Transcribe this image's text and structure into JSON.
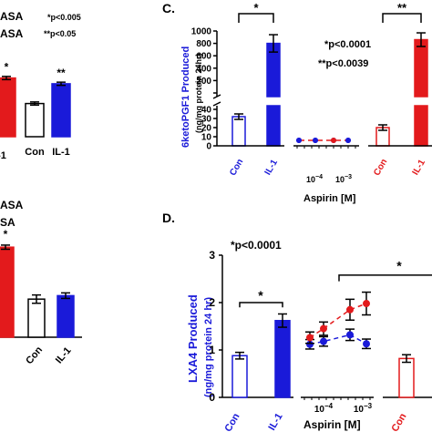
{
  "colors": {
    "red": "#e31a1c",
    "blue": "#1a1ad9",
    "black": "#000000",
    "white": "#ffffff"
  },
  "panel_left_top": {
    "legend": [
      "ASA",
      "ASA"
    ],
    "stats": [
      "*p<0.005",
      "**p<0.05"
    ]
  },
  "panel_left_bottom": {
    "legend": [
      "ASA",
      "SA"
    ]
  },
  "chart_data": [
    {
      "panel": "",
      "type": "bar",
      "categories": [
        "",
        "Con",
        "IL-1"
      ],
      "values": [
        0.92,
        0.52,
        0.83
      ],
      "errors": [
        0.025,
        0.025,
        0.025
      ],
      "ylim": [
        0,
        1.3
      ],
      "colors": [
        "#e31a1c",
        "#ffffff",
        "#1a1ad9"
      ],
      "annotations": [
        "*",
        "",
        "**"
      ],
      "xlabel": "",
      "ylabel": ""
    },
    {
      "panel": "C.",
      "type": "bar",
      "ylabel": "6ketoPGF1 Produced",
      "ylabel2": "(ng/mg protein 24hr)",
      "xlabel": "Aspirin [M]",
      "categories": [
        "Con",
        "IL-1",
        "",
        "",
        "",
        "",
        "Con",
        "IL-1"
      ],
      "values": [
        32,
        800,
        6,
        6,
        6,
        6,
        20,
        860
      ],
      "errors": [
        3,
        140,
        0,
        0,
        0,
        0,
        3,
        110
      ],
      "colors": [
        "#ffffff",
        "#1a1ad9",
        "#1a1ad9",
        "#1a1ad9",
        "#e31a1c",
        "#e31a1c",
        "#ffffff",
        "#e31a1c"
      ],
      "yticks_lower": [
        "0",
        "10",
        "20",
        "30",
        "40"
      ],
      "yticks_upper": [
        "0",
        "200",
        "400",
        "600",
        "800",
        "1000"
      ],
      "xticks": [
        "10-4",
        "10-3"
      ],
      "stats": [
        "*p<0.0001",
        "**p<0.0039"
      ],
      "brackets": [
        "*",
        "**"
      ]
    },
    {
      "panel": "",
      "type": "bar",
      "categories": [
        "",
        "Con",
        "IL-1"
      ],
      "values": [
        1.3,
        0.55,
        0.6
      ],
      "errors": [
        0.03,
        0.06,
        0.04
      ],
      "ylim": [
        0,
        1.5
      ],
      "colors": [
        "#e31a1c",
        "#ffffff",
        "#1a1ad9"
      ],
      "annotations": [
        "*",
        "",
        ""
      ],
      "xlabel": "",
      "ylabel": ""
    },
    {
      "panel": "D.",
      "type": "bar",
      "ylabel": "LXA4 Produced",
      "ylabel2": "(ng/mg protein 24 hr)",
      "xlabel": "Aspirin [M]",
      "ylim": [
        0,
        3
      ],
      "yticks": [
        "0",
        "1",
        "2",
        "3"
      ],
      "xticks": [
        "10-4",
        "10-3"
      ],
      "bars": {
        "categories": [
          "Con",
          "IL-1",
          "Con"
        ],
        "values": [
          0.88,
          1.62,
          0.82
        ],
        "errors": [
          0.07,
          0.14,
          0.08
        ],
        "colors": [
          "#ffffff",
          "#1a1ad9",
          "#ffffff"
        ]
      },
      "series": [
        {
          "color": "#1a1ad9",
          "x": [
            1,
            2,
            3,
            4
          ],
          "values": [
            1.12,
            1.18,
            1.32,
            1.13
          ],
          "errors": [
            0.1,
            0.1,
            0.12,
            0.1
          ]
        },
        {
          "color": "#e31a1c",
          "x": [
            1,
            2,
            3,
            4
          ],
          "values": [
            1.26,
            1.45,
            1.85,
            1.98
          ],
          "errors": [
            0.12,
            0.14,
            0.22,
            0.24
          ]
        }
      ],
      "stats": [
        "*p<0.0001"
      ],
      "brackets": [
        "*",
        "*"
      ],
      "xlabel_extra": "Con"
    }
  ]
}
